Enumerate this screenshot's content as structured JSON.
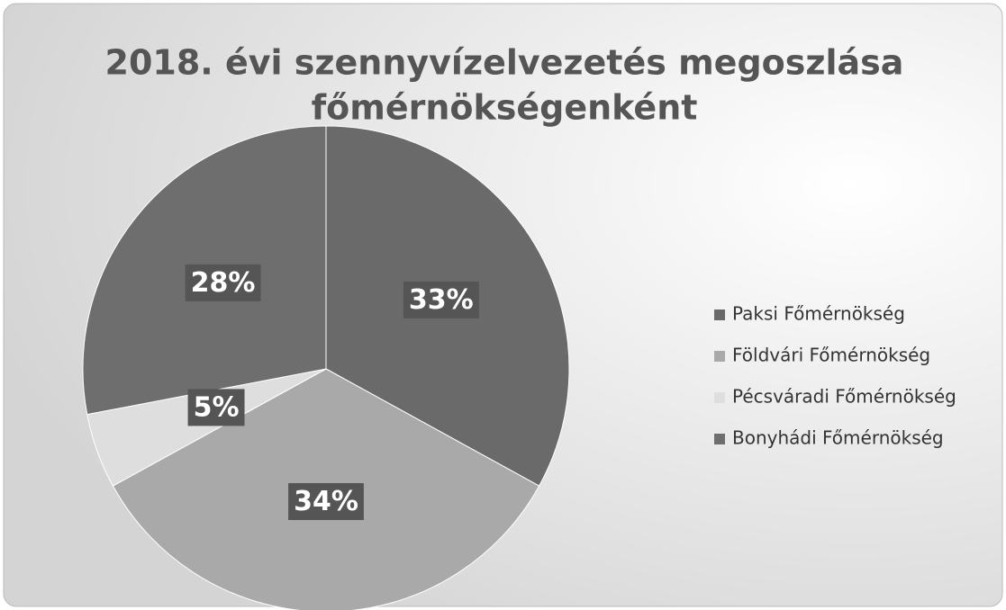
{
  "chart_data": {
    "type": "pie",
    "title": [
      "2018. évi szennyvízelvezetés megoszlása",
      "főmérnökségenként"
    ],
    "categories": [
      "Paksi Főmérnökség",
      "Földvári Főmérnökség",
      "Pécsváradi Főmérnökség",
      "Bonyhádi Főmérnökség"
    ],
    "values": [
      33,
      34,
      5,
      28
    ],
    "value_labels": [
      "33%",
      "34%",
      "5%",
      "28%"
    ],
    "colors": [
      "#6a6a6a",
      "#a9a9a9",
      "#dedede",
      "#6e6e6e"
    ],
    "legend": "right"
  }
}
